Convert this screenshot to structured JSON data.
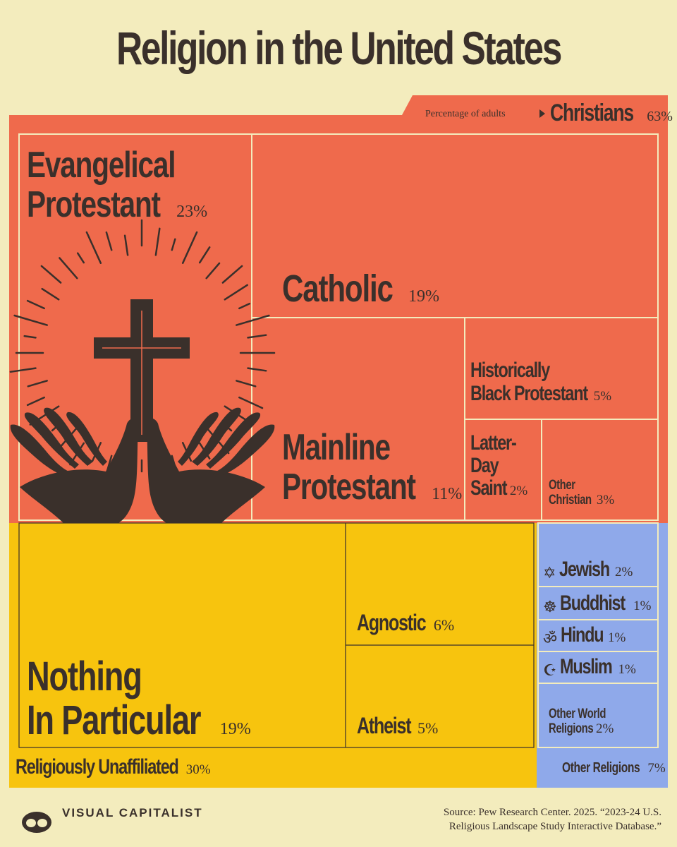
{
  "title": "Religion in the United States",
  "header_note": "Percentage of adults",
  "colors": {
    "background": "#f3ecbd",
    "christian": "#ef6a4c",
    "unaffiliated": "#f7c40e",
    "other": "#8fa9ea",
    "ink": "#3a302b",
    "rule": "#f3ecbd"
  },
  "chart_data": {
    "type": "treemap",
    "unit": "%",
    "groups": [
      {
        "name": "Christians",
        "value": 63,
        "label": "63%",
        "items": [
          {
            "name": "Evangelical Protestant",
            "value": 23,
            "label": "23%"
          },
          {
            "name": "Catholic",
            "value": 19,
            "label": "19%"
          },
          {
            "name": "Mainline Protestant",
            "value": 11,
            "label": "11%"
          },
          {
            "name": "Historically Black Protestant",
            "value": 5,
            "label": "5%"
          },
          {
            "name": "Latter-Day Saint",
            "value": 2,
            "label": "2%"
          },
          {
            "name": "Other Christian",
            "value": 3,
            "label": "3%"
          }
        ]
      },
      {
        "name": "Religiously Unaffiliated",
        "value": 30,
        "label": "30%",
        "items": [
          {
            "name": "Nothing In Particular",
            "value": 19,
            "label": "19%"
          },
          {
            "name": "Agnostic",
            "value": 6,
            "label": "6%"
          },
          {
            "name": "Atheist",
            "value": 5,
            "label": "5%"
          }
        ]
      },
      {
        "name": "Other Religions",
        "value": 7,
        "label": "7%",
        "items": [
          {
            "name": "Jewish",
            "value": 2,
            "label": "2%",
            "icon": "star-of-david-icon"
          },
          {
            "name": "Buddhist",
            "value": 1,
            "label": "1%",
            "icon": "dharma-wheel-icon"
          },
          {
            "name": "Hindu",
            "value": 1,
            "label": "1%",
            "icon": "om-icon"
          },
          {
            "name": "Muslim",
            "value": 1,
            "label": "1%",
            "icon": "crescent-star-icon"
          },
          {
            "name": "Other World Religions",
            "value": 2,
            "label": "2%"
          }
        ]
      }
    ]
  },
  "labels": {
    "christians_group": "Christians",
    "christians_pct": "63%",
    "evangelical": [
      "Evangelical",
      "Protestant"
    ],
    "evangelical_pct": "23%",
    "catholic": "Catholic",
    "catholic_pct": "19%",
    "mainline": [
      "Mainline",
      "Protestant"
    ],
    "mainline_pct": "11%",
    "black_protestant": [
      "Historically",
      "Black Protestant"
    ],
    "black_protestant_pct": "5%",
    "lds": [
      "Latter-",
      "Day",
      "Saint"
    ],
    "lds_pct": "2%",
    "other_christian": [
      "Other",
      "Christian"
    ],
    "other_christian_pct": "3%",
    "nothing": [
      "Nothing",
      "In Particular"
    ],
    "nothing_pct": "19%",
    "agnostic": "Agnostic",
    "agnostic_pct": "6%",
    "atheist": "Atheist",
    "atheist_pct": "5%",
    "jewish": "Jewish",
    "jewish_pct": "2%",
    "buddhist": "Buddhist",
    "buddhist_pct": "1%",
    "hindu": "Hindu",
    "hindu_pct": "1%",
    "muslim": "Muslim",
    "muslim_pct": "1%",
    "other_world": [
      "Other World",
      "Religions"
    ],
    "other_world_pct": "2%",
    "unaffiliated_group": "Religiously Unaffiliated",
    "unaffiliated_pct": "30%",
    "other_group": "Other Religions",
    "other_group_pct": "7%"
  },
  "footer": {
    "brand": "VISUAL CAPITALIST",
    "source_line1": "Source: Pew Research Center. 2025. “2023-24 U.S.",
    "source_line2": "Religious Landscape Study Interactive Database.”"
  },
  "illustration": {
    "description_icon": "cross-with-praying-hands-icon"
  }
}
